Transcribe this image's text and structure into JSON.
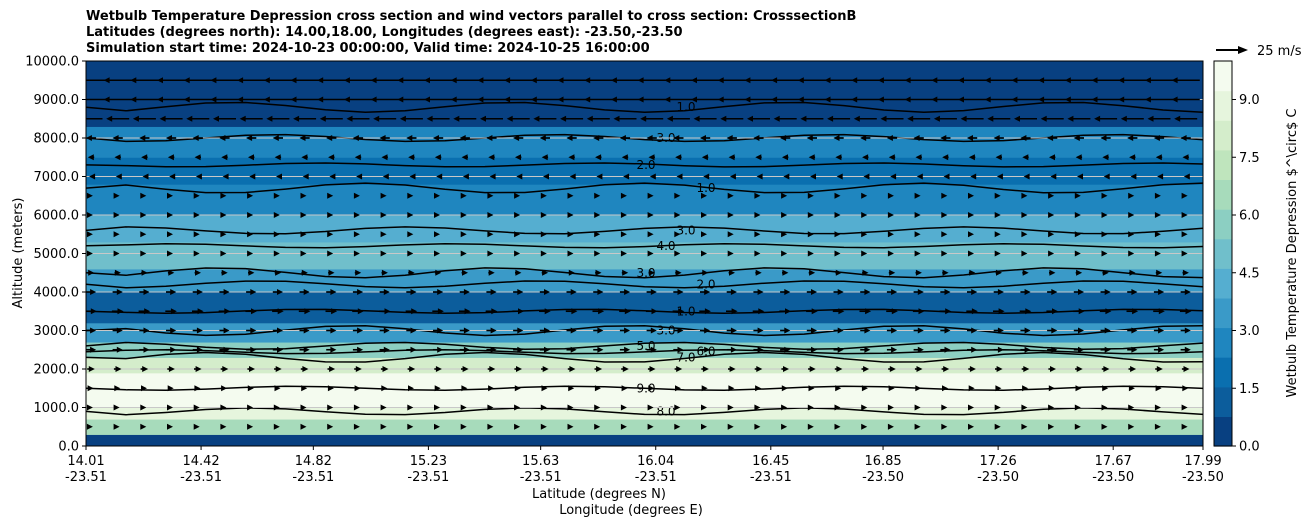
{
  "title": {
    "line1": "Wetbulb Temperature Depression cross section and wind vectors parallel to cross section: CrosssectionB",
    "line2": "Latitudes (degrees north): 14.00,18.00, Longitudes (degrees east): -23.50,-23.50",
    "line3": "Simulation start time: 2024-10-23 00:00:00, Valid time: 2024-10-25 16:00:00"
  },
  "quiver_key": "25 m/s",
  "colors": {
    "colormap": [
      "#084081",
      "#0c5d9c",
      "#0a6faf",
      "#1f86bf",
      "#3a9ac8",
      "#55aed0",
      "#70bfcb",
      "#8ccfc2",
      "#a7dbbb",
      "#bfe5bd",
      "#d4edcb",
      "#e6f5dd",
      "#f4fbef"
    ]
  },
  "chart_data": {
    "type": "heatmap",
    "xlabel": "Latitude (degrees N)",
    "xlabel2": "Longitude (degrees E)",
    "ylabel": "Altitude (meters)",
    "colorbar_label": "Wetbulb Temperature Depression $^\\circ$ C",
    "xlim": [
      14.01,
      17.99
    ],
    "ylim": [
      0,
      10000
    ],
    "x_ticks": [
      {
        "lat": "14.01",
        "lon": "-23.51",
        "value": 14.01
      },
      {
        "lat": "14.42",
        "lon": "-23.51",
        "value": 14.42
      },
      {
        "lat": "14.82",
        "lon": "-23.51",
        "value": 14.82
      },
      {
        "lat": "15.23",
        "lon": "-23.51",
        "value": 15.23
      },
      {
        "lat": "15.63",
        "lon": "-23.51",
        "value": 15.63
      },
      {
        "lat": "16.04",
        "lon": "-23.51",
        "value": 16.04
      },
      {
        "lat": "16.45",
        "lon": "-23.51",
        "value": 16.45
      },
      {
        "lat": "16.85",
        "lon": "-23.50",
        "value": 16.85
      },
      {
        "lat": "17.26",
        "lon": "-23.50",
        "value": 17.26
      },
      {
        "lat": "17.67",
        "lon": "-23.50",
        "value": 17.67
      },
      {
        "lat": "17.99",
        "lon": "-23.50",
        "value": 17.99
      }
    ],
    "y_ticks": [
      "0.0",
      "1000.0",
      "2000.0",
      "3000.0",
      "4000.0",
      "5000.0",
      "6000.0",
      "7000.0",
      "8000.0",
      "9000.0",
      "10000.0"
    ],
    "colorbar_ticks": [
      "0.0",
      "1.5",
      "3.0",
      "4.5",
      "6.0",
      "7.5",
      "9.0"
    ],
    "colorbar_range": [
      0,
      10
    ],
    "grid": "horizontal",
    "bands": [
      {
        "y0": 0,
        "y1": 300,
        "v": 0.5
      },
      {
        "y0": 300,
        "y1": 700,
        "v": 6.5
      },
      {
        "y0": 700,
        "y1": 1000,
        "v": 8.5
      },
      {
        "y0": 1000,
        "y1": 1900,
        "v": 9.3
      },
      {
        "y0": 1900,
        "y1": 2300,
        "v": 8.0
      },
      {
        "y0": 2300,
        "y1": 2700,
        "v": 6.0
      },
      {
        "y0": 2700,
        "y1": 3200,
        "v": 3.5
      },
      {
        "y0": 3200,
        "y1": 4000,
        "v": 1.5
      },
      {
        "y0": 4000,
        "y1": 4600,
        "v": 3.5
      },
      {
        "y0": 4600,
        "y1": 5300,
        "v": 5.0
      },
      {
        "y0": 5300,
        "y1": 6000,
        "v": 4.2
      },
      {
        "y0": 6000,
        "y1": 6800,
        "v": 3.0
      },
      {
        "y0": 6800,
        "y1": 7500,
        "v": 1.8
      },
      {
        "y0": 7500,
        "y1": 8300,
        "v": 3.0
      },
      {
        "y0": 8300,
        "y1": 10000,
        "v": 0.5
      }
    ],
    "contours": [
      {
        "level": "9.0",
        "alt": 1500
      },
      {
        "level": "8.0",
        "alt": 900
      },
      {
        "level": "7.0",
        "alt": 2300
      },
      {
        "level": "6.0",
        "alt": 2450
      },
      {
        "level": "5.0",
        "alt": 2600
      },
      {
        "level": "3.0",
        "alt": 3000
      },
      {
        "level": "1.0",
        "alt": 3500
      },
      {
        "level": "2.0",
        "alt": 4200
      },
      {
        "level": "3.0",
        "alt": 4500
      },
      {
        "level": "4.0",
        "alt": 5200
      },
      {
        "level": "3.0",
        "alt": 5600
      },
      {
        "level": "1.0",
        "alt": 6700
      },
      {
        "level": "2.0",
        "alt": 7300
      },
      {
        "level": "3.0",
        "alt": 8000
      },
      {
        "level": "1.0",
        "alt": 8800
      }
    ],
    "wind_rows": [
      {
        "alt": 9500,
        "dir": -1,
        "speed": 22
      },
      {
        "alt": 9000,
        "dir": -1,
        "speed": 22
      },
      {
        "alt": 8500,
        "dir": -1,
        "speed": 18
      },
      {
        "alt": 8000,
        "dir": -1,
        "speed": 8
      },
      {
        "alt": 7500,
        "dir": -1,
        "speed": 5
      },
      {
        "alt": 7000,
        "dir": -1,
        "speed": 3
      },
      {
        "alt": 6500,
        "dir": 1,
        "speed": 3
      },
      {
        "alt": 6000,
        "dir": 1,
        "speed": 3
      },
      {
        "alt": 5500,
        "dir": 1,
        "speed": 3
      },
      {
        "alt": 5000,
        "dir": 1,
        "speed": 3
      },
      {
        "alt": 4500,
        "dir": 1,
        "speed": 5
      },
      {
        "alt": 4000,
        "dir": 1,
        "speed": 8
      },
      {
        "alt": 3500,
        "dir": 1,
        "speed": 9
      },
      {
        "alt": 3000,
        "dir": 1,
        "speed": 8
      },
      {
        "alt": 2500,
        "dir": 1,
        "speed": 8
      },
      {
        "alt": 2000,
        "dir": 1,
        "speed": 6
      },
      {
        "alt": 1500,
        "dir": 1,
        "speed": 4
      },
      {
        "alt": 1000,
        "dir": 1,
        "speed": 3
      },
      {
        "alt": 500,
        "dir": 1,
        "speed": 3
      }
    ]
  }
}
